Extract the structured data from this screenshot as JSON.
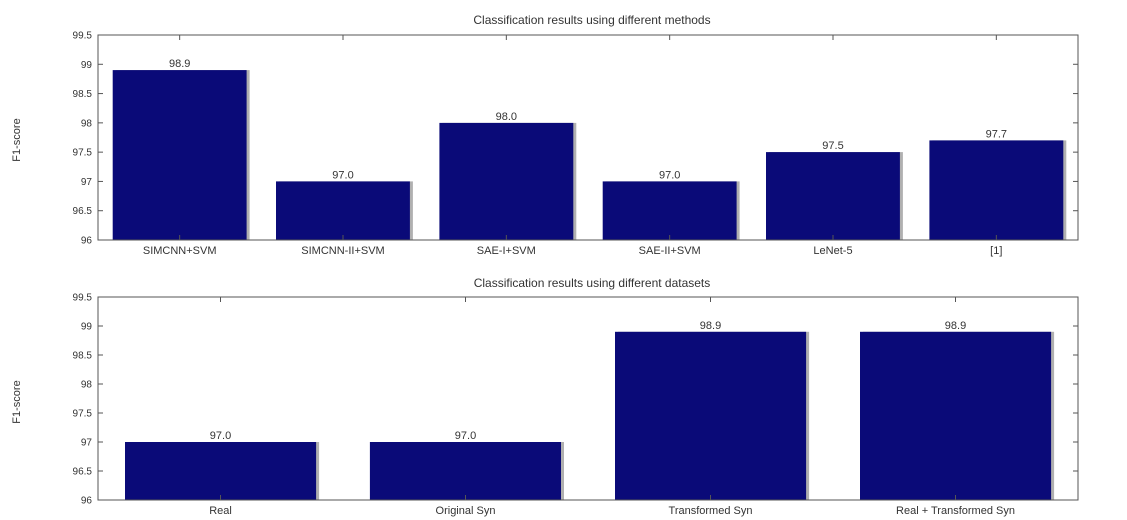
{
  "chart_data": [
    {
      "type": "bar",
      "title": "Classification results using different methods",
      "xlabel": "",
      "ylabel": "F1-score",
      "categories": [
        "SIMCNN+SVM",
        "SIMCNN-II+SVM",
        "SAE-I+SVM",
        "SAE-II+SVM",
        "LeNet-5",
        "[1]"
      ],
      "values": [
        98.9,
        97.0,
        98.0,
        97.0,
        97.5,
        97.7
      ],
      "value_labels": [
        "98.9",
        "97.0",
        "98.0",
        "97.0",
        "97.5",
        "97.7"
      ],
      "ylim": [
        96,
        99.5
      ],
      "yticks": [
        96,
        96.5,
        97,
        97.5,
        98,
        98.5,
        99,
        99.5
      ],
      "ytick_labels": [
        "96",
        "96.5",
        "97",
        "97.5",
        "98",
        "98.5",
        "99",
        "99.5"
      ],
      "grid": false,
      "bar_color": "#0a0a78",
      "bar_edge_color": "#b0b0b0"
    },
    {
      "type": "bar",
      "title": "Classification results using different datasets",
      "xlabel": "",
      "ylabel": "F1-score",
      "categories": [
        "Real",
        "Original Syn",
        "Transformed Syn",
        "Real + Transformed Syn"
      ],
      "values": [
        97.0,
        97.0,
        98.9,
        98.9
      ],
      "value_labels": [
        "97.0",
        "97.0",
        "98.9",
        "98.9"
      ],
      "ylim": [
        96,
        99.5
      ],
      "yticks": [
        96,
        96.5,
        97,
        97.5,
        98,
        98.5,
        99,
        99.5
      ],
      "ytick_labels": [
        "96",
        "96.5",
        "97",
        "97.5",
        "98",
        "98.5",
        "99",
        "99.5"
      ],
      "grid": false,
      "bar_color": "#0a0a78",
      "bar_edge_color": "#b0b0b0"
    }
  ]
}
